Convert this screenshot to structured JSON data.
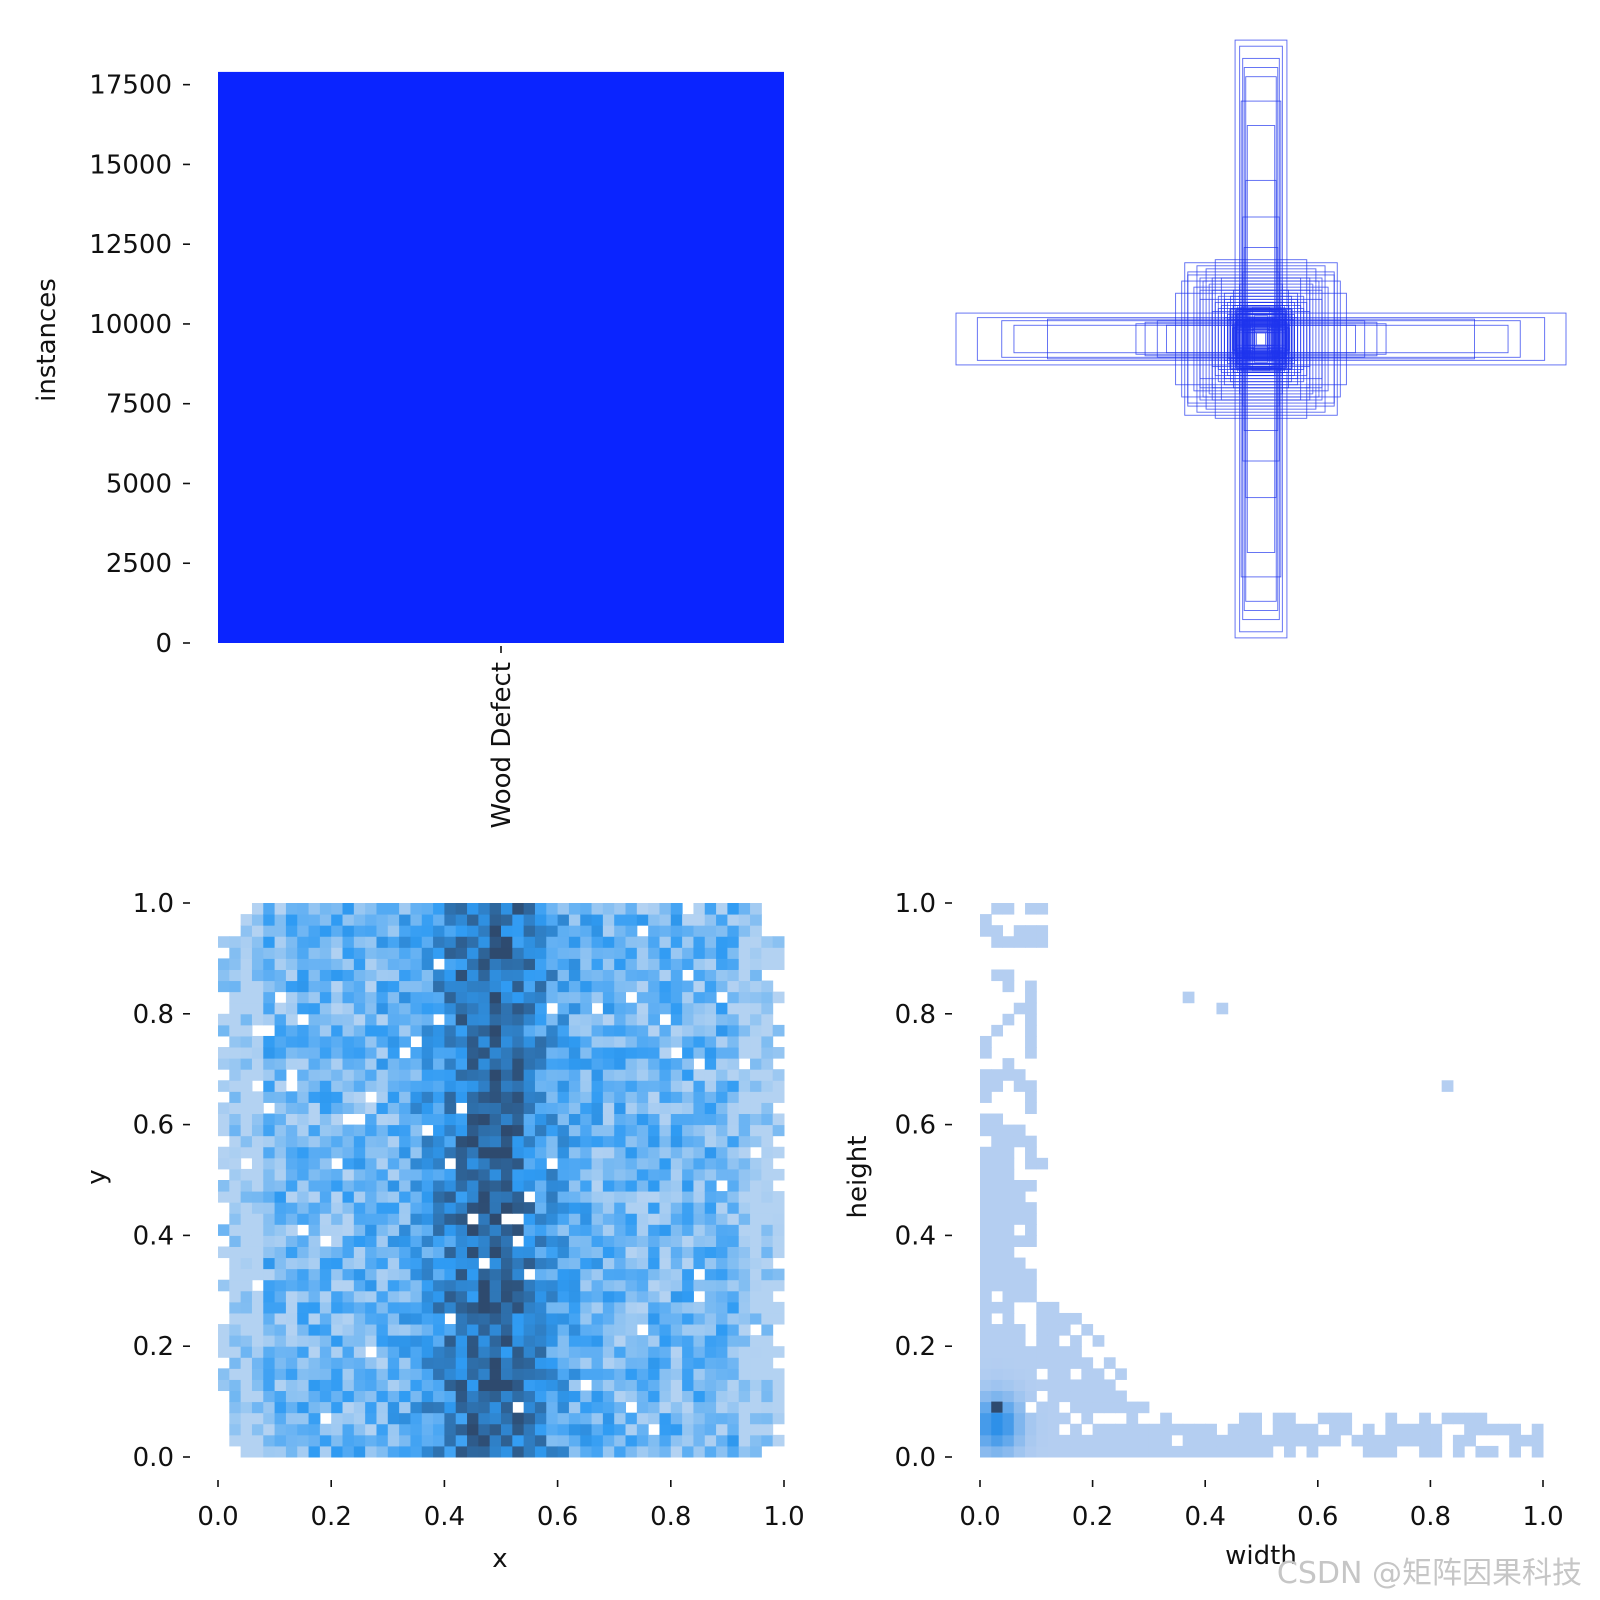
{
  "colors": {
    "bar": "#0a24ff",
    "box_stroke": "#1e33ee",
    "heat_low": "#b3d2f2",
    "heat_mid": "#2f9bf3",
    "heat_high": "#2e4a6e",
    "wh_low": "#b4cef1",
    "wh_high": "#2e90e8",
    "text": "#111111"
  },
  "watermark": "CSDN @矩阵因果科技",
  "chart_data": [
    {
      "id": "class-bar",
      "type": "bar",
      "categories": [
        "Wood Defect"
      ],
      "values": [
        17900
      ],
      "ylabel": "instances",
      "xlabel": "",
      "ylim": [
        0,
        18900
      ],
      "yticks": [
        0,
        2500,
        5000,
        7500,
        10000,
        12500,
        15000,
        17500
      ],
      "ytick_labels": [
        "0",
        "2500",
        "5000",
        "7500",
        "10000",
        "12500",
        "15000",
        "17500"
      ]
    },
    {
      "id": "box-overlay",
      "type": "scatter",
      "description_kind": "centered bounding boxes (width, height) in normalized units",
      "boxes": [
        [
          0.085,
          0.98
        ],
        [
          0.07,
          0.96
        ],
        [
          0.06,
          0.92
        ],
        [
          0.055,
          0.89
        ],
        [
          0.05,
          0.86
        ],
        [
          0.065,
          0.78
        ],
        [
          0.045,
          0.7
        ],
        [
          0.05,
          0.52
        ],
        [
          0.06,
          0.4
        ],
        [
          0.055,
          0.3
        ],
        [
          0.06,
          0.22
        ],
        [
          0.07,
          0.18
        ],
        [
          0.045,
          0.12
        ],
        [
          0.05,
          0.09
        ],
        [
          1.0,
          0.085
        ],
        [
          0.93,
          0.07
        ],
        [
          0.85,
          0.06
        ],
        [
          0.7,
          0.065
        ],
        [
          0.81,
          0.045
        ],
        [
          0.41,
          0.05
        ],
        [
          0.38,
          0.055
        ],
        [
          0.34,
          0.06
        ],
        [
          0.31,
          0.045
        ],
        [
          0.25,
          0.25
        ],
        [
          0.24,
          0.21
        ],
        [
          0.2,
          0.2
        ],
        [
          0.26,
          0.19
        ],
        [
          0.18,
          0.23
        ],
        [
          0.22,
          0.17
        ],
        [
          0.17,
          0.18
        ],
        [
          0.24,
          0.22
        ],
        [
          0.21,
          0.24
        ],
        [
          0.28,
          0.15
        ],
        [
          0.15,
          0.26
        ],
        [
          0.13,
          0.2
        ],
        [
          0.2,
          0.13
        ],
        [
          0.19,
          0.19
        ],
        [
          0.16,
          0.16
        ],
        [
          0.14,
          0.14
        ],
        [
          0.12,
          0.13
        ],
        [
          0.13,
          0.11
        ],
        [
          0.11,
          0.12
        ],
        [
          0.1,
          0.1
        ],
        [
          0.09,
          0.11
        ],
        [
          0.11,
          0.08
        ],
        [
          0.08,
          0.09
        ],
        [
          0.07,
          0.07
        ],
        [
          0.06,
          0.08
        ],
        [
          0.08,
          0.06
        ],
        [
          0.05,
          0.06
        ],
        [
          0.06,
          0.05
        ],
        [
          0.04,
          0.05
        ],
        [
          0.05,
          0.04
        ],
        [
          0.12,
          0.15
        ],
        [
          0.15,
          0.12
        ],
        [
          0.1,
          0.14
        ],
        [
          0.14,
          0.1
        ],
        [
          0.09,
          0.16
        ],
        [
          0.16,
          0.09
        ],
        [
          0.07,
          0.12
        ],
        [
          0.12,
          0.07
        ],
        [
          0.035,
          0.045
        ],
        [
          0.03,
          0.03
        ],
        [
          0.025,
          0.035
        ],
        [
          0.02,
          0.025
        ],
        [
          0.015,
          0.02
        ],
        [
          0.2,
          0.16
        ],
        [
          0.16,
          0.2
        ]
      ]
    },
    {
      "id": "xy-hist",
      "type": "heatmap",
      "xlabel": "x",
      "ylabel": "y",
      "xlim": [
        0,
        1
      ],
      "ylim": [
        0,
        1
      ],
      "xticks": [
        "0.0",
        "0.2",
        "0.4",
        "0.6",
        "0.8",
        "1.0"
      ],
      "yticks": [
        "0.0",
        "0.2",
        "0.4",
        "0.6",
        "0.8",
        "1.0"
      ],
      "bins": 50,
      "distribution": "dense over x 0.01–0.99, y 0.0–1.0; highest density in band x≈0.40–0.56"
    },
    {
      "id": "wh-hist",
      "type": "heatmap",
      "xlabel": "width",
      "ylabel": "height",
      "xlim": [
        0,
        1
      ],
      "ylim": [
        0,
        1
      ],
      "xticks": [
        "0.0",
        "0.2",
        "0.4",
        "0.6",
        "0.8",
        "1.0"
      ],
      "yticks": [
        "0.0",
        "0.2",
        "0.4",
        "0.6",
        "0.8",
        "1.0"
      ],
      "bins": 50,
      "distribution": "concentrated near width≈0.03, height≈0.06; tall thin boxes along width<0.1, wide short boxes along height<0.1, triangular spread to width 0.3"
    }
  ]
}
